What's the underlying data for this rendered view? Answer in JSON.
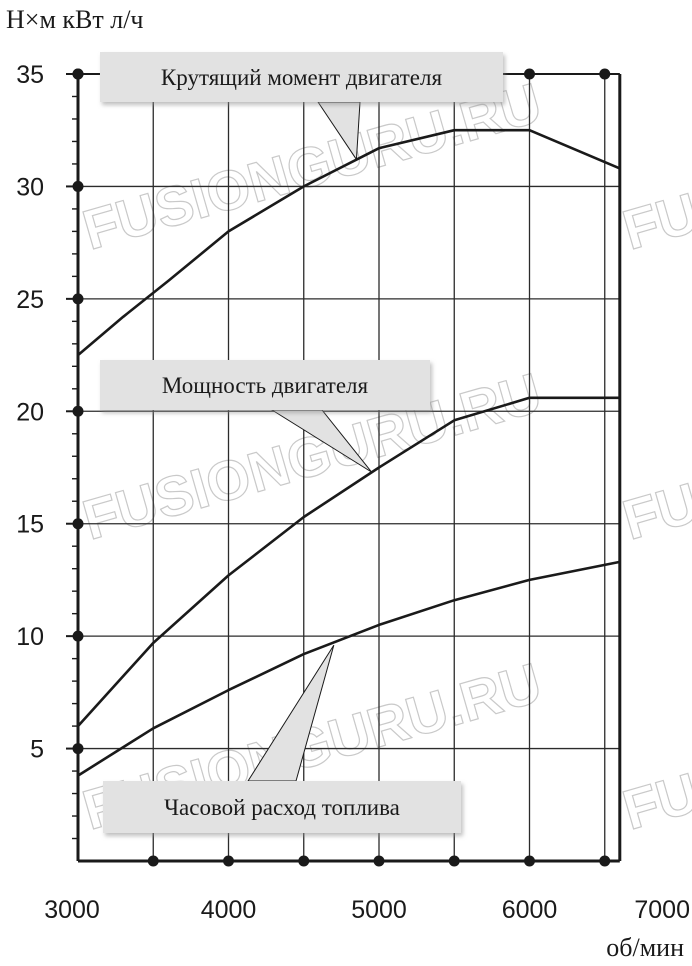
{
  "chart_data": {
    "type": "line",
    "title": "",
    "ylabel": "Н×м кВт л/ч",
    "xlabel": "об/мин",
    "xlim": [
      3000,
      7000
    ],
    "ylim": [
      0,
      35
    ],
    "x_max_data": 6600,
    "x_ticks": [
      "3000",
      "4000",
      "5000",
      "6000",
      "7000"
    ],
    "x_tick_values": [
      3000,
      4000,
      5000,
      6000,
      7000
    ],
    "y_ticks": [
      "5",
      "10",
      "15",
      "20",
      "25",
      "30",
      "35"
    ],
    "y_tick_values": [
      5,
      10,
      15,
      20,
      25,
      30,
      35
    ],
    "grid": true,
    "series": [
      {
        "name": "Крутящий момент двигателя",
        "x": [
          3000,
          3300,
          3600,
          4000,
          4500,
          5000,
          5500,
          6000,
          6600
        ],
        "y": [
          22.5,
          24.2,
          25.8,
          28.0,
          30.0,
          31.7,
          32.5,
          32.5,
          30.8
        ]
      },
      {
        "name": "Мощность двигателя",
        "x": [
          3000,
          3500,
          4000,
          4500,
          5000,
          5500,
          6000,
          6600
        ],
        "y": [
          6.0,
          9.7,
          12.7,
          15.3,
          17.5,
          19.6,
          20.6,
          20.6
        ]
      },
      {
        "name": "Часовой расход топлива",
        "x": [
          3000,
          3500,
          4000,
          4500,
          5000,
          5500,
          6000,
          6600
        ],
        "y": [
          3.8,
          5.9,
          7.6,
          9.2,
          10.5,
          11.6,
          12.5,
          13.3
        ]
      }
    ],
    "annotations": [
      {
        "series": 0,
        "text": "Крутящий момент двигателя"
      },
      {
        "series": 1,
        "text": "Мощность двигателя"
      },
      {
        "series": 2,
        "text": "Часовой расход топлива"
      }
    ]
  },
  "watermark": "FUSIONGURU.RU"
}
